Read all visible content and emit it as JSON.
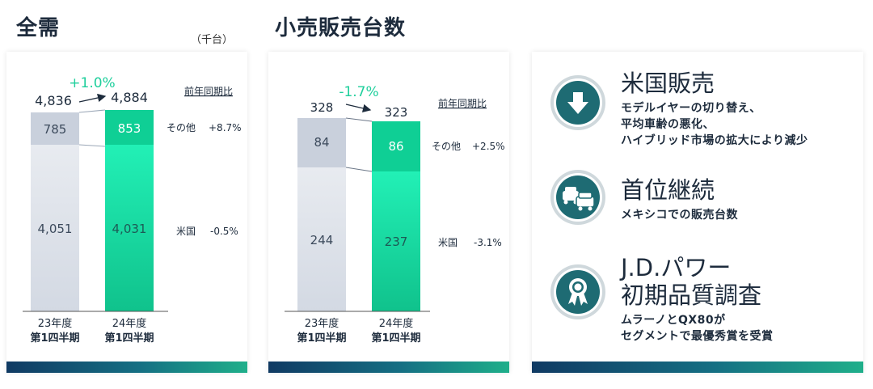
{
  "titles": {
    "total_demand": "全需",
    "unit": "（千台）",
    "retail_sales": "小売販売台数"
  },
  "chart_data": [
    {
      "type": "bar",
      "title": "全需",
      "categories": [
        "23年度\n第1四半期",
        "24年度\n第1四半期"
      ],
      "series": [
        {
          "name": "米国",
          "values": [
            4051,
            4031
          ],
          "change": "-0.5%"
        },
        {
          "name": "その他",
          "values": [
            785,
            853
          ],
          "change": "+8.7%"
        }
      ],
      "totals": [
        4836,
        4884
      ],
      "total_change": "+1.0%",
      "change_header": "前年同期比",
      "ylim": [
        0,
        4836
      ]
    },
    {
      "type": "bar",
      "title": "小売販売台数",
      "categories": [
        "23年度\n第1四半期",
        "24年度\n第1四半期"
      ],
      "series": [
        {
          "name": "米国",
          "values": [
            244,
            237
          ],
          "change": "-3.1%"
        },
        {
          "name": "その他",
          "values": [
            84,
            86
          ],
          "change": "+2.5%"
        }
      ],
      "totals": [
        328,
        323
      ],
      "total_change": "-1.7%",
      "change_header": "前年同期比",
      "ylim": [
        0,
        328
      ]
    }
  ],
  "labels": {
    "chart1": {
      "total_prev": "4,836",
      "total_curr": "4,884",
      "change": "+1.0%",
      "header": "前年同期比",
      "us_prev": "4,051",
      "us_curr": "4,031",
      "oth_prev": "785",
      "oth_curr": "853",
      "oth_label": "その他",
      "oth_change": "+8.7%",
      "us_label": "米国",
      "us_change": "-0.5%",
      "cat0_l1": "23年度",
      "cat0_l2": "第1四半期",
      "cat1_l1": "24年度",
      "cat1_l2": "第1四半期"
    },
    "chart2": {
      "total_prev": "328",
      "total_curr": "323",
      "change": "-1.7%",
      "header": "前年同期比",
      "us_prev": "244",
      "us_curr": "237",
      "oth_prev": "84",
      "oth_curr": "86",
      "oth_label": "その他",
      "oth_change": "+2.5%",
      "us_label": "米国",
      "us_change": "-3.1%",
      "cat0_l1": "23年度",
      "cat0_l2": "第1四半期",
      "cat1_l1": "24年度",
      "cat1_l2": "第1四半期"
    }
  },
  "features": [
    {
      "title": "米国販売",
      "desc": [
        "モデルイヤーの切り替え、",
        "平均車齢の悪化、",
        "ハイブリッド市場の拡大により減少"
      ],
      "icon": "down-arrow-icon"
    },
    {
      "title": "首位継続",
      "desc": [
        "メキシコでの販売台数"
      ],
      "icon": "cars-icon"
    },
    {
      "title_lines": [
        "J.D.パワー",
        "初期品質調査"
      ],
      "desc": [
        "ムラーノとQX80が",
        "セグメントで最優秀賞を受賞"
      ],
      "icon": "award-ribbon-icon"
    }
  ],
  "colors": {
    "prev_us": "#dfe3ea",
    "prev_other": "#c9d0dc",
    "curr_us": "#1de9b0",
    "curr_other": "#0fcf95",
    "change_positive": "#1fcf9c",
    "icon_teal": "#1e6b73",
    "text_dark": "#1d2b3c"
  }
}
